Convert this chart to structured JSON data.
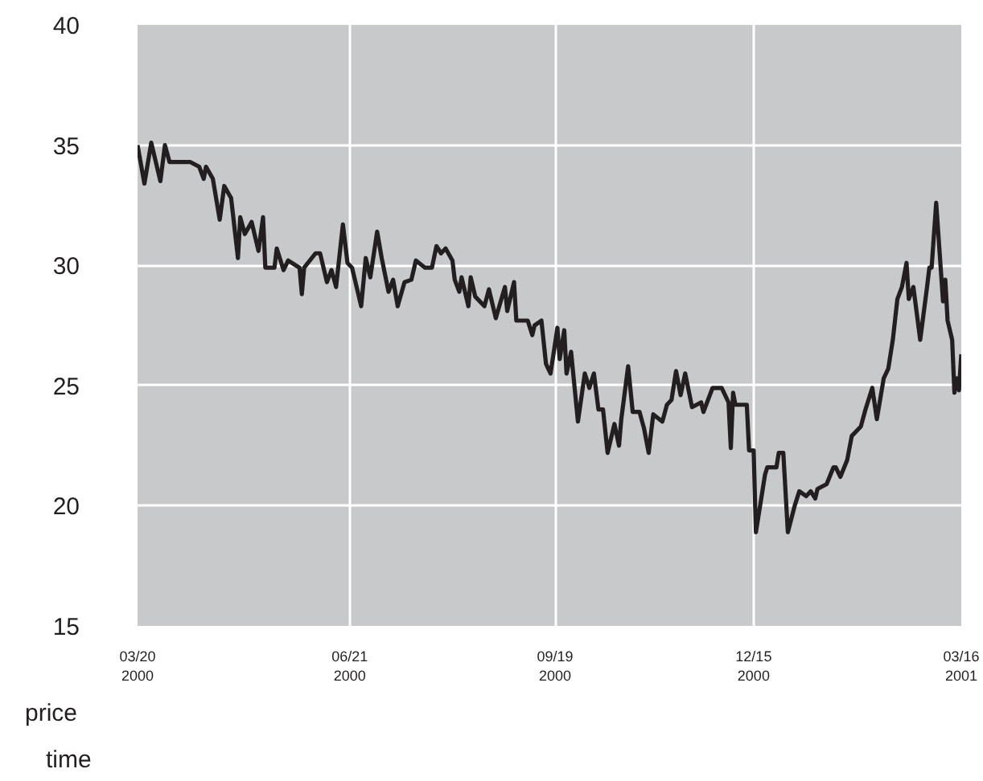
{
  "chart_data": {
    "type": "line",
    "xlabel": "time",
    "ylabel": "price",
    "x": [
      "2000-03-20",
      "2000-03-23",
      "2000-03-26",
      "2000-03-30",
      "2000-04-01",
      "2000-04-03",
      "2000-04-12",
      "2000-04-16",
      "2000-04-18",
      "2000-04-19",
      "2000-04-22",
      "2000-04-25",
      "2000-04-27",
      "2000-04-30",
      "2000-05-03",
      "2000-05-04",
      "2000-05-06",
      "2000-05-09",
      "2000-05-12",
      "2000-05-14",
      "2000-05-15",
      "2000-05-19",
      "2000-05-20",
      "2000-05-23",
      "2000-05-25",
      "2000-05-30",
      "2000-05-31",
      "2000-06-01",
      "2000-06-06",
      "2000-06-08",
      "2000-06-11",
      "2000-06-13",
      "2000-06-15",
      "2000-06-18",
      "2000-06-20",
      "2000-06-22",
      "2000-06-26",
      "2000-06-28",
      "2000-06-30",
      "2000-07-03",
      "2000-07-05",
      "2000-07-08",
      "2000-07-10",
      "2000-07-12",
      "2000-07-15",
      "2000-07-18",
      "2000-07-20",
      "2000-07-24",
      "2000-07-27",
      "2000-07-29",
      "2000-07-31",
      "2000-08-02",
      "2000-08-05",
      "2000-08-06",
      "2000-08-08",
      "2000-08-09",
      "2000-08-12",
      "2000-08-13",
      "2000-08-15",
      "2000-08-19",
      "2000-08-21",
      "2000-08-24",
      "2000-08-28",
      "2000-08-29",
      "2000-09-01",
      "2000-09-02",
      "2000-09-07",
      "2000-09-09",
      "2000-09-10",
      "2000-09-13",
      "2000-09-15",
      "2000-09-17",
      "2000-09-20",
      "2000-09-21",
      "2000-09-23",
      "2000-09-24",
      "2000-09-26",
      "2000-09-29",
      "2000-10-02",
      "2000-10-04",
      "2000-10-06",
      "2000-10-08",
      "2000-10-10",
      "2000-10-12",
      "2000-10-15",
      "2000-10-17",
      "2000-10-18",
      "2000-10-21",
      "2000-10-23",
      "2000-10-26",
      "2000-10-28",
      "2000-10-30",
      "2000-11-01",
      "2000-11-05",
      "2000-11-07",
      "2000-11-09",
      "2000-11-11",
      "2000-11-13",
      "2000-11-15",
      "2000-11-18",
      "2000-11-22",
      "2000-11-23",
      "2000-11-27",
      "2000-12-01",
      "2000-12-04",
      "2000-12-05",
      "2000-12-06",
      "2000-12-07",
      "2000-12-12",
      "2000-12-13",
      "2000-12-15",
      "2000-12-16",
      "2000-12-20",
      "2000-12-21",
      "2000-12-25",
      "2000-12-26",
      "2000-12-28",
      "2000-12-30",
      "2001-01-02",
      "2001-01-04",
      "2001-01-07",
      "2001-01-09",
      "2001-01-11",
      "2001-01-12",
      "2001-01-16",
      "2001-01-19",
      "2001-01-20",
      "2001-01-22",
      "2001-01-25",
      "2001-01-27",
      "2001-01-31",
      "2001-02-02",
      "2001-02-05",
      "2001-02-07",
      "2001-02-10",
      "2001-02-12",
      "2001-02-14",
      "2001-02-16",
      "2001-02-18",
      "2001-02-20",
      "2001-02-21",
      "2001-02-23",
      "2001-02-26",
      "2001-03-01",
      "2001-03-02",
      "2001-03-03",
      "2001-03-05",
      "2001-03-08",
      "2001-03-09",
      "2001-03-10",
      "2001-03-12",
      "2001-03-13",
      "2001-03-14",
      "2001-03-15",
      "2001-03-16"
    ],
    "series": [
      {
        "color": "#231f20",
        "values": [
          35.0,
          33.4,
          35.1,
          33.5,
          35.0,
          34.3,
          34.3,
          34.1,
          33.6,
          34.1,
          33.6,
          31.9,
          33.3,
          32.8,
          30.3,
          32.0,
          31.3,
          31.8,
          30.6,
          32.0,
          29.9,
          29.9,
          30.7,
          29.8,
          30.2,
          29.9,
          28.8,
          29.9,
          30.5,
          30.5,
          29.3,
          29.8,
          29.1,
          31.7,
          30.1,
          29.9,
          28.3,
          30.3,
          29.5,
          31.4,
          30.3,
          28.9,
          29.4,
          28.3,
          29.3,
          29.4,
          30.2,
          29.9,
          29.9,
          30.8,
          30.5,
          30.7,
          30.2,
          29.4,
          28.9,
          29.5,
          28.3,
          29.5,
          28.7,
          28.3,
          29.0,
          27.8,
          29.1,
          28.1,
          29.3,
          27.7,
          27.7,
          27.1,
          27.5,
          27.7,
          25.9,
          25.5,
          27.4,
          26.1,
          27.3,
          25.5,
          26.4,
          23.5,
          25.5,
          24.9,
          25.5,
          24.0,
          24.0,
          22.2,
          23.4,
          22.5,
          23.6,
          25.8,
          23.9,
          23.9,
          23.2,
          22.2,
          23.8,
          23.5,
          24.2,
          24.4,
          25.6,
          24.6,
          25.5,
          24.1,
          24.3,
          23.9,
          24.9,
          24.9,
          24.3,
          22.4,
          24.7,
          24.2,
          24.2,
          22.3,
          22.3,
          18.9,
          21.3,
          21.6,
          21.6,
          22.2,
          22.2,
          18.9,
          20.0,
          20.6,
          20.4,
          20.6,
          20.3,
          20.7,
          20.9,
          21.6,
          21.6,
          21.2,
          21.9,
          22.9,
          23.3,
          24.0,
          24.9,
          23.6,
          25.3,
          25.7,
          26.9,
          28.6,
          29.1,
          30.1,
          28.6,
          29.1,
          26.9,
          29.1,
          29.9,
          29.9,
          32.6,
          28.5,
          29.4,
          27.7,
          26.9,
          24.7,
          25.3,
          24.8,
          26.3
        ]
      }
    ],
    "xlim": [
      "2000-03-20",
      "2001-03-16"
    ],
    "xticks": [
      {
        "value": "2000-03-20",
        "label": "03/20\n2000"
      },
      {
        "value": "2000-06-21",
        "label": "06/21\n2000"
      },
      {
        "value": "2000-09-19",
        "label": "09/19\n2000"
      },
      {
        "value": "2000-12-15",
        "label": "12/15\n2000"
      },
      {
        "value": "2001-03-16",
        "label": "03/16\n2001"
      }
    ],
    "ylim": [
      15,
      40
    ],
    "yticks": [
      15,
      20,
      25,
      30,
      35,
      40
    ],
    "grid": true,
    "marker": "none",
    "line_style": "solid"
  }
}
